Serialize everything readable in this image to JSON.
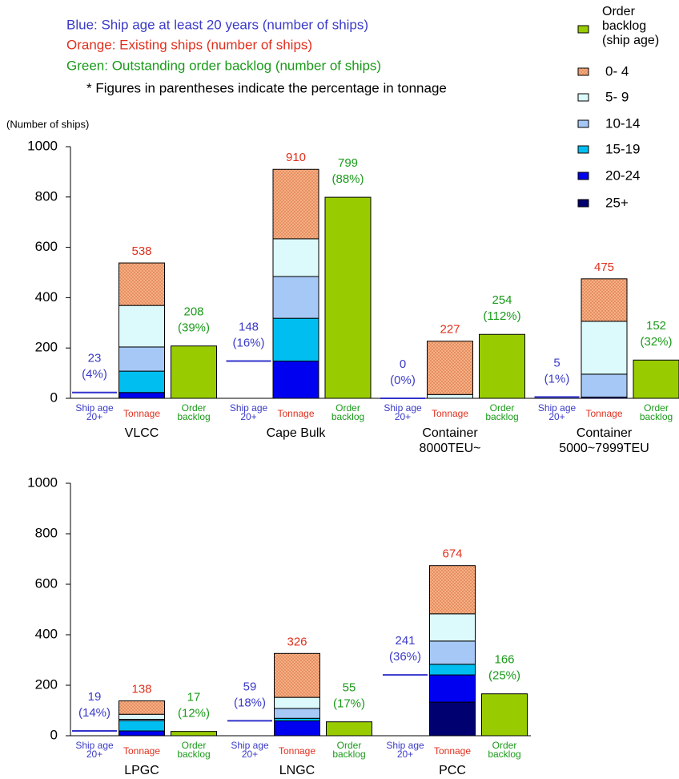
{
  "notes": [
    {
      "text": "Blue: Ship age at least 20 years (number of ships)",
      "color": "#3b3bc8"
    },
    {
      "text": "Orange: Existing ships (number of ships)",
      "color": "#e0301e"
    },
    {
      "text": "Green: Outstanding order backlog (number of ships)",
      "color": "#1a9a1a"
    },
    {
      "text": "* Figures in parentheses indicate the percentage in tonnage",
      "color": "#000000"
    }
  ],
  "chart_data": [
    {
      "type": "bar",
      "stacked": true,
      "ylabel": "(Number of ships)",
      "categories": [
        [
          "VLCC"
        ],
        [
          "Cape Bulk"
        ],
        [
          "Container",
          "8000TEU~"
        ],
        [
          "Container",
          "5000~7999TEU"
        ]
      ],
      "sub_labels": [
        [
          "Ship age",
          "20+"
        ],
        [
          "Tonnage"
        ],
        [
          "Order",
          "backlog"
        ]
      ],
      "ylim": [
        0,
        1000
      ],
      "yticks": [
        0,
        200,
        400,
        600,
        800,
        1000
      ],
      "age20": {
        "color": "#3333cc",
        "values": [
          23,
          148,
          0,
          5
        ],
        "shares": [
          4,
          16,
          0,
          1
        ],
        "share_labels": [
          "(4%)",
          "(16%)",
          "(0%)",
          "(1%)"
        ]
      },
      "series": [
        {
          "name": "0- 4",
          "color": "#f6b48a",
          "hatch": true,
          "values": [
            169,
            276,
            212,
            169
          ]
        },
        {
          "name": "5- 9",
          "color": "#dcfafc",
          "values": [
            165,
            150,
            15,
            210
          ]
        },
        {
          "name": "10-14",
          "color": "#a6c8f6",
          "values": [
            96,
            166,
            0,
            91
          ]
        },
        {
          "name": "15-19",
          "color": "#00bff0",
          "values": [
            85,
            170,
            0,
            0
          ]
        },
        {
          "name": "20-24",
          "color": "#0000f0",
          "values": [
            23,
            148,
            0,
            5
          ]
        },
        {
          "name": "25+",
          "color": "#000070",
          "values": [
            0,
            0,
            0,
            0
          ]
        }
      ],
      "totals": [
        538,
        910,
        227,
        475
      ],
      "backlog": {
        "name": "Order backlog (ship age)",
        "color": "#99cc00",
        "values": [
          208,
          799,
          254,
          152
        ],
        "shares": [
          39,
          88,
          112,
          32
        ],
        "share_labels": [
          "(39%)",
          "(88%)",
          "(112%)",
          "(32%)"
        ]
      }
    },
    {
      "type": "bar",
      "stacked": true,
      "categories": [
        [
          "LPGC"
        ],
        [
          "LNGC"
        ],
        [
          "PCC"
        ]
      ],
      "sub_labels": [
        [
          "Ship age",
          "20+"
        ],
        [
          "Tonnage"
        ],
        [
          "Order",
          "backlog"
        ]
      ],
      "ylim": [
        0,
        1000
      ],
      "yticks": [
        0,
        200,
        400,
        600,
        800,
        1000
      ],
      "age20": {
        "color": "#3333cc",
        "values": [
          19,
          59,
          241
        ],
        "shares": [
          14,
          18,
          36
        ],
        "share_labels": [
          "(14%)",
          "(18%)",
          "(36%)"
        ]
      },
      "series": [
        {
          "color": "#f6b48a",
          "hatch": true,
          "values": [
            53,
            174,
            191
          ]
        },
        {
          "color": "#dcfafc",
          "values": [
            20,
            44,
            108
          ]
        },
        {
          "color": "#a6c8f6",
          "values": [
            5,
            39,
            92
          ]
        },
        {
          "color": "#00bff0",
          "values": [
            41,
            10,
            42
          ]
        },
        {
          "color": "#0000f0",
          "values": [
            19,
            59,
            108
          ]
        },
        {
          "color": "#000070",
          "values": [
            0,
            0,
            133
          ]
        }
      ],
      "totals": [
        138,
        326,
        674
      ],
      "backlog": {
        "color": "#99cc00",
        "values": [
          17,
          55,
          166
        ],
        "shares": [
          12,
          17,
          25
        ],
        "share_labels": [
          "(12%)",
          "(17%)",
          "(25%)"
        ]
      }
    }
  ]
}
